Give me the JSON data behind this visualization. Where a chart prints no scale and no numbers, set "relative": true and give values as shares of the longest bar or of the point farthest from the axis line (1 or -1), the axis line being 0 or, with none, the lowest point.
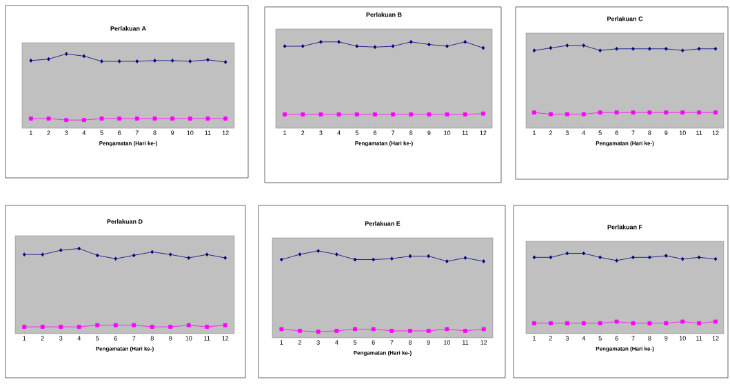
{
  "chart_data": [
    {
      "type": "line",
      "title": "Perlakuan A",
      "xlabel": "Pengamatan (Hari ke-)",
      "categories": [
        "1",
        "2",
        "3",
        "4",
        "5",
        "6",
        "7",
        "8",
        "9",
        "10",
        "11",
        "12"
      ],
      "relative": true,
      "series": [
        {
          "color": "#000080",
          "marker": "diamond",
          "values": [
            0.91,
            0.93,
            1,
            0.97,
            0.9,
            0.9,
            0.9,
            0.91,
            0.91,
            0.9,
            0.92,
            0.89
          ]
        },
        {
          "color": "#ff00ff",
          "marker": "square",
          "values": [
            0.13,
            0.13,
            0.11,
            0.11,
            0.13,
            0.13,
            0.13,
            0.13,
            0.13,
            0.13,
            0.13,
            0.13
          ]
        }
      ]
    },
    {
      "type": "line",
      "title": "Perlakuan B",
      "xlabel": "Pengamatan (Hari ke-)",
      "categories": [
        "1",
        "2",
        "3",
        "4",
        "5",
        "6",
        "7",
        "8",
        "9",
        "10",
        "11",
        "12"
      ],
      "relative": true,
      "series": [
        {
          "color": "#000080",
          "marker": "diamond",
          "values": [
            0.95,
            0.95,
            1,
            1,
            0.95,
            0.94,
            0.95,
            1,
            0.97,
            0.95,
            1,
            0.93
          ]
        },
        {
          "color": "#ff00ff",
          "marker": "square",
          "values": [
            0.16,
            0.16,
            0.16,
            0.16,
            0.16,
            0.16,
            0.16,
            0.16,
            0.16,
            0.16,
            0.16,
            0.17
          ]
        }
      ]
    },
    {
      "type": "line",
      "title": "Perlakuan C",
      "xlabel": "Pengamatan (Hari ke-)",
      "categories": [
        "1",
        "2",
        "3",
        "4",
        "5",
        "6",
        "7",
        "8",
        "9",
        "10",
        "11",
        "12"
      ],
      "relative": true,
      "series": [
        {
          "color": "#000080",
          "marker": "diamond",
          "values": [
            0.94,
            0.97,
            1,
            1,
            0.94,
            0.96,
            0.96,
            0.96,
            0.96,
            0.94,
            0.96,
            0.96
          ]
        },
        {
          "color": "#ff00ff",
          "marker": "square",
          "values": [
            0.19,
            0.17,
            0.17,
            0.17,
            0.19,
            0.19,
            0.19,
            0.19,
            0.19,
            0.19,
            0.19,
            0.19
          ]
        }
      ]
    },
    {
      "type": "line",
      "title": "Perlakuan D",
      "xlabel": "Pengamatan (Hari ke-)",
      "categories": [
        "1",
        "2",
        "3",
        "4",
        "5",
        "6",
        "7",
        "8",
        "9",
        "10",
        "11",
        "12"
      ],
      "relative": true,
      "series": [
        {
          "color": "#000080",
          "marker": "diamond",
          "values": [
            0.93,
            0.93,
            0.98,
            1,
            0.92,
            0.88,
            0.92,
            0.96,
            0.93,
            0.89,
            0.93,
            0.89
          ]
        },
        {
          "color": "#ff00ff",
          "marker": "square",
          "values": [
            0.08,
            0.08,
            0.08,
            0.08,
            0.1,
            0.1,
            0.1,
            0.08,
            0.08,
            0.1,
            0.08,
            0.1
          ]
        }
      ]
    },
    {
      "type": "line",
      "title": "Perlakuan E",
      "xlabel": "Pengamatan (Hari ke-)",
      "categories": [
        "1",
        "2",
        "3",
        "4",
        "5",
        "6",
        "7",
        "8",
        "9",
        "10",
        "11",
        "12"
      ],
      "relative": true,
      "series": [
        {
          "color": "#000080",
          "marker": "diamond",
          "values": [
            0.9,
            0.96,
            1,
            0.96,
            0.9,
            0.9,
            0.91,
            0.94,
            0.94,
            0.88,
            0.92,
            0.88
          ]
        },
        {
          "color": "#ff00ff",
          "marker": "square",
          "values": [
            0.1,
            0.08,
            0.07,
            0.08,
            0.1,
            0.1,
            0.08,
            0.08,
            0.08,
            0.1,
            0.08,
            0.1
          ]
        }
      ]
    },
    {
      "type": "line",
      "title": "Perlakuan F",
      "xlabel": "Pengamatan (Hari ke-)",
      "categories": [
        "1",
        "2",
        "3",
        "4",
        "5",
        "6",
        "7",
        "8",
        "9",
        "10",
        "11",
        "12"
      ],
      "relative": true,
      "series": [
        {
          "color": "#000080",
          "marker": "diamond",
          "values": [
            0.95,
            0.95,
            1,
            1,
            0.95,
            0.91,
            0.95,
            0.95,
            0.97,
            0.93,
            0.95,
            0.93
          ]
        },
        {
          "color": "#ff00ff",
          "marker": "square",
          "values": [
            0.13,
            0.13,
            0.13,
            0.13,
            0.13,
            0.15,
            0.13,
            0.13,
            0.13,
            0.15,
            0.13,
            0.15
          ]
        }
      ]
    }
  ]
}
